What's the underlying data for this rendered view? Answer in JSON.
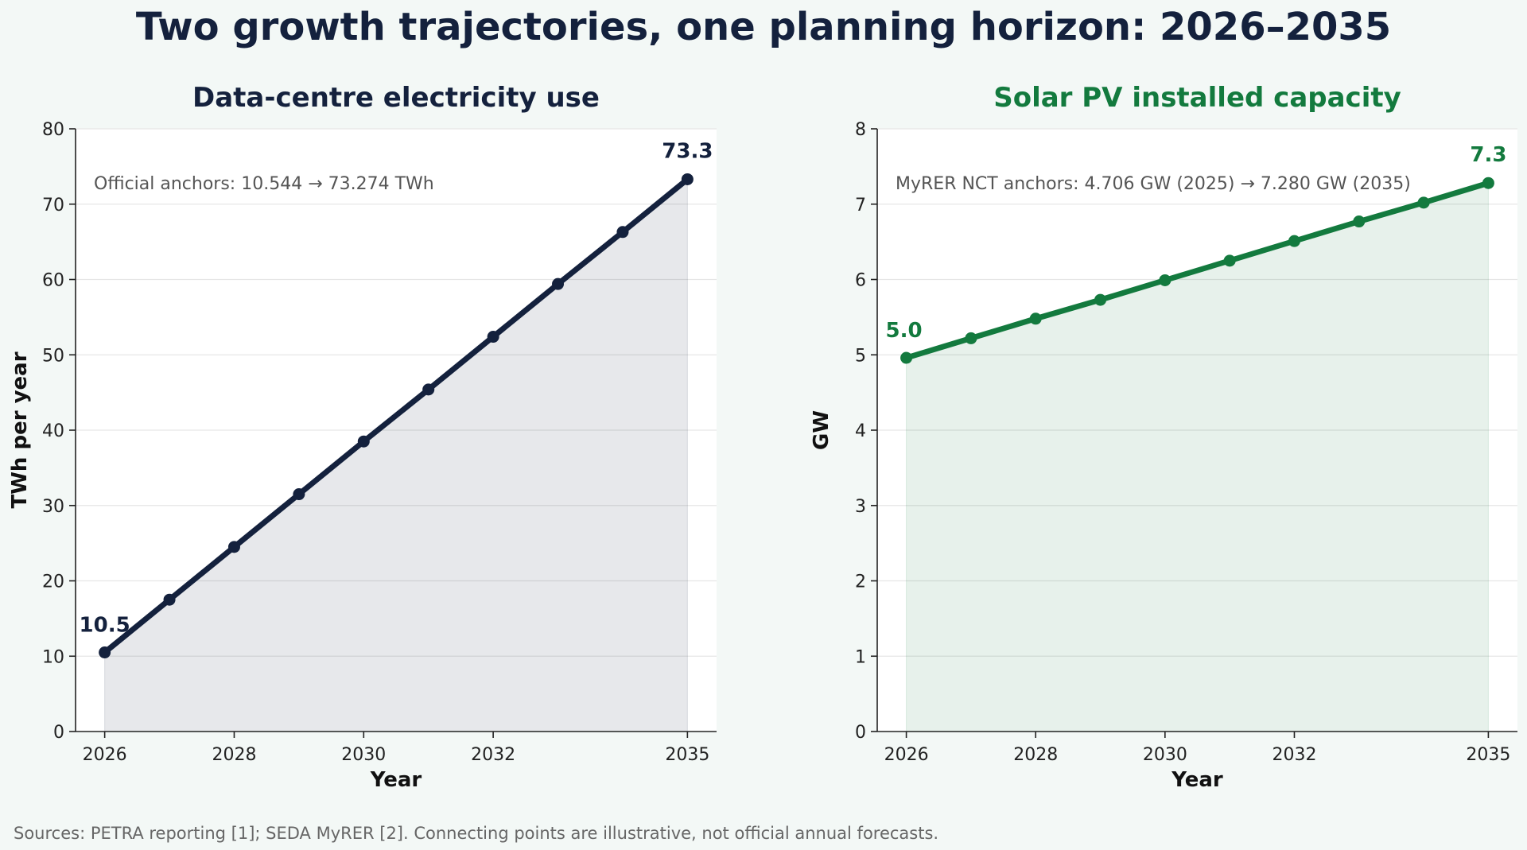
{
  "title": "Two growth trajectories, one planning horizon: 2026–2035",
  "footer": "Sources: PETRA reporting [1]; SEDA MyRER [2]. Connecting points are illustrative, not official annual forecasts.",
  "colors": {
    "background": "#f3f8f6",
    "title": "#14213d",
    "navy": "#14213d",
    "green": "#137a3e",
    "annotation": "#555555",
    "footer": "#666666",
    "grid": "#e6e6e6"
  },
  "chart_data": [
    {
      "type": "area",
      "title": "Data-centre electricity use",
      "xlabel": "Year",
      "ylabel": "TWh per year",
      "x": [
        2026,
        2027,
        2028,
        2029,
        2030,
        2031,
        2032,
        2033,
        2034,
        2035
      ],
      "series": [
        {
          "values": [
            10.5,
            17.5,
            24.5,
            31.5,
            38.5,
            45.4,
            52.4,
            59.4,
            66.3,
            73.3
          ]
        }
      ],
      "xlim": [
        2025.55,
        2035.45
      ],
      "xticks": [
        2026,
        2028,
        2030,
        2032,
        2035
      ],
      "ylim": [
        0,
        80
      ],
      "yticks": [
        0,
        10,
        20,
        30,
        40,
        50,
        60,
        70,
        80
      ],
      "data_labels": [
        {
          "x": 2026,
          "y": 10.5,
          "text": "10.5"
        },
        {
          "x": 2035,
          "y": 73.3,
          "text": "73.3"
        }
      ],
      "annotation": "Official anchors: 10.544 → 73.274 TWh",
      "grid": "horizontal",
      "color": "navy"
    },
    {
      "type": "area",
      "title": "Solar PV installed capacity",
      "xlabel": "Year",
      "ylabel": "GW",
      "x": [
        2026,
        2027,
        2028,
        2029,
        2030,
        2031,
        2032,
        2033,
        2034,
        2035
      ],
      "series": [
        {
          "values": [
            4.96,
            5.22,
            5.48,
            5.73,
            5.99,
            6.25,
            6.51,
            6.77,
            7.02,
            7.28
          ]
        }
      ],
      "xlim": [
        2025.55,
        2035.45
      ],
      "xticks": [
        2026,
        2028,
        2030,
        2032,
        2035
      ],
      "ylim": [
        0,
        8
      ],
      "yticks": [
        0,
        1,
        2,
        3,
        4,
        5,
        6,
        7,
        8
      ],
      "data_labels": [
        {
          "x": 2026,
          "y": 4.96,
          "text": "5.0"
        },
        {
          "x": 2035,
          "y": 7.28,
          "text": "7.3"
        }
      ],
      "annotation": "MyRER NCT anchors: 4.706 GW (2025) → 7.280 GW (2035)",
      "grid": "horizontal",
      "color": "green"
    }
  ]
}
